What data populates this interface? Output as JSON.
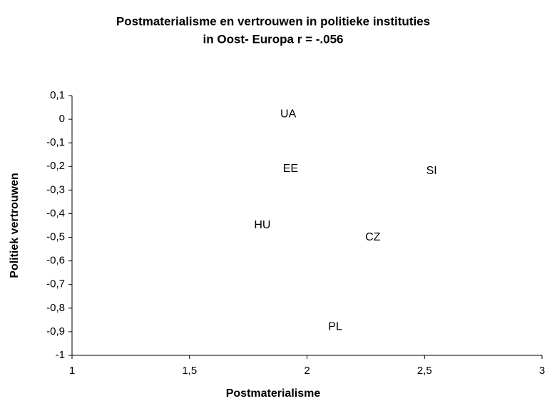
{
  "chart_data": {
    "type": "scatter",
    "title": [
      "Postmaterialisme en vertrouwen in politieke instituties",
      "in Oost- Europa r = -.056"
    ],
    "x_label": "Postmaterialisme",
    "y_label": "Politiek vertrouwen",
    "point_labels": [
      "UA",
      "EE",
      "SI",
      "HU",
      "CZ",
      "PL"
    ],
    "x": [
      1.92,
      1.93,
      2.53,
      1.81,
      2.28,
      2.12
    ],
    "values": [
      0.02,
      -0.21,
      -0.22,
      -0.45,
      -0.5,
      -0.88
    ],
    "xlim": [
      1,
      3
    ],
    "ylim": [
      -1,
      0.1
    ],
    "xticks": [
      1,
      {
        "value": 1.5,
        "label": "1,5"
      },
      2,
      {
        "value": 2.5,
        "label": "2,5"
      },
      3
    ],
    "yticks": [
      {
        "value": 0.1,
        "label": "0,1"
      },
      0,
      {
        "value": -0.1,
        "label": "-0,1"
      },
      {
        "value": -0.2,
        "label": "-0,2"
      },
      {
        "value": -0.3,
        "label": "-0,3"
      },
      {
        "value": -0.4,
        "label": "-0,4"
      },
      {
        "value": -0.5,
        "label": "-0,5"
      },
      {
        "value": -0.6,
        "label": "-0,6"
      },
      {
        "value": -0.7,
        "label": "-0,7"
      },
      {
        "value": -0.8,
        "label": "-0,8"
      },
      {
        "value": -0.9,
        "label": "-0,9"
      },
      -1
    ],
    "grid": false
  }
}
